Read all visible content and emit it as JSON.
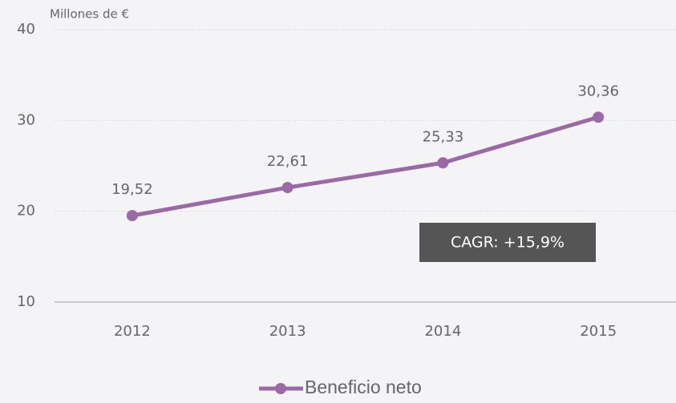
{
  "chart_data": {
    "type": "line",
    "y_axis_label": "Millones de €",
    "categories": [
      "2012",
      "2013",
      "2014",
      "2015"
    ],
    "series": [
      {
        "name": "Beneficio neto",
        "color": "#9b6aa6",
        "values": [
          19.52,
          22.61,
          25.33,
          30.36
        ],
        "value_labels": [
          "19,52",
          "22,61",
          "25,33",
          "30,36"
        ]
      }
    ],
    "ylim": [
      10,
      40
    ],
    "yticks": [
      10,
      20,
      30,
      40
    ],
    "grid": true,
    "annotation": "CAGR: +15,9%",
    "legend": "bottom"
  }
}
